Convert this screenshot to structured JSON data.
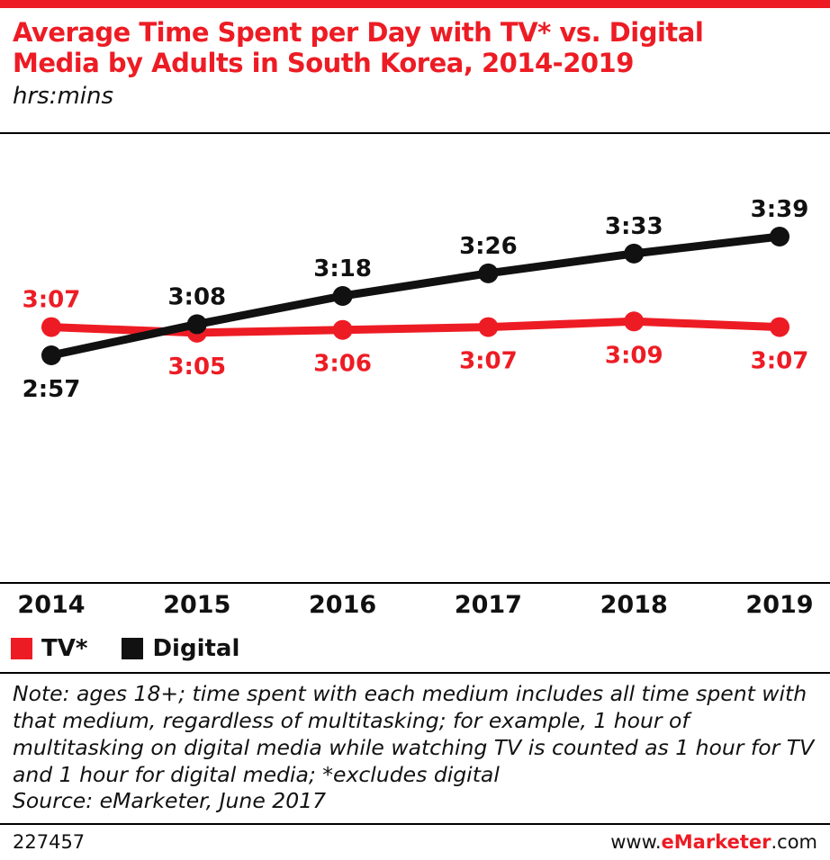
{
  "header": {
    "title_line1": "Average Time Spent per Day with TV* vs. Digital",
    "title_line2": "Media by Adults in South Korea, 2014-2019",
    "subtitle": "hrs:mins",
    "accent_color": "#ed1c24"
  },
  "chart_data": {
    "type": "line",
    "title": "Average Time Spent per Day with TV* vs. Digital Media by Adults in South Korea, 2014-2019",
    "ylabel": "hrs:mins",
    "grid": false,
    "legend_position": "bottom-left",
    "categories": [
      "2014",
      "2015",
      "2016",
      "2017",
      "2018",
      "2019"
    ],
    "series": [
      {
        "name": "TV*",
        "color": "#ed1c24",
        "labels": [
          "3:07",
          "3:05",
          "3:06",
          "3:07",
          "3:09",
          "3:07"
        ],
        "values_minutes": [
          187,
          185,
          186,
          187,
          189,
          187
        ],
        "label_position": [
          "above",
          "below",
          "below",
          "below",
          "below",
          "below"
        ]
      },
      {
        "name": "Digital",
        "color": "#111111",
        "labels": [
          "2:57",
          "3:08",
          "3:18",
          "3:26",
          "3:33",
          "3:39"
        ],
        "values_minutes": [
          177,
          188,
          198,
          206,
          213,
          219
        ],
        "label_position": [
          "below",
          "above",
          "above",
          "above",
          "above",
          "above"
        ]
      }
    ]
  },
  "legend": {
    "items": [
      {
        "label": "TV*",
        "color": "#ed1c24"
      },
      {
        "label": "Digital",
        "color": "#111111"
      }
    ]
  },
  "note": {
    "note_text": "Note: ages 18+; time spent with each medium includes all time spent with that medium, regardless of multitasking; for example, 1 hour of multitasking on digital media while watching TV is counted as 1 hour for TV and 1 hour for digital media; *excludes digital",
    "source_text": "Source: eMarketer, June 2017"
  },
  "footer": {
    "id": "227457",
    "site_prefix": "www.",
    "site_brand": "eMarketer",
    "site_suffix": ".com"
  }
}
